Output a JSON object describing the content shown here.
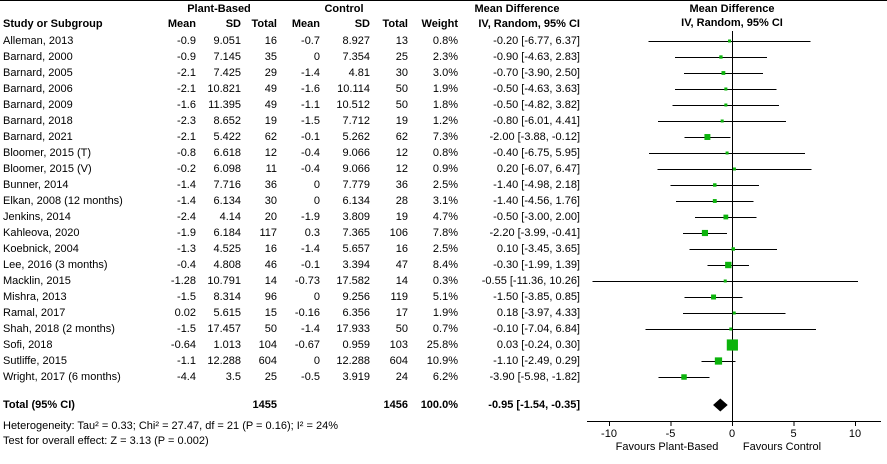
{
  "header": {
    "plant_group": "Plant-Based",
    "control_group": "Control",
    "md_table": "Mean Difference",
    "md_plot": "Mean Difference",
    "iv_plot": "IV, Random, 95% CI",
    "columns": {
      "study": "Study or Subgroup",
      "mean": "Mean",
      "sd": "SD",
      "total": "Total",
      "weight": "Weight",
      "ci": "IV, Random, 95% CI"
    }
  },
  "chart_data": {
    "type": "forest_plot",
    "effect_measure": "Mean Difference",
    "method": "IV, Random, 95% CI",
    "axis": {
      "ticks": [
        -10,
        -5,
        0,
        5,
        10
      ],
      "min": -11.8,
      "max": 12.1,
      "label_left": "Favours Plant-Based",
      "label_right": "Favours Control"
    },
    "studies": [
      {
        "name": "Alleman, 2013",
        "p_mean": "-0.9",
        "p_sd": "9.051",
        "p_total": "16",
        "c_mean": "-0.7",
        "c_sd": "8.927",
        "c_total": "13",
        "weight": "0.8%",
        "md": -0.2,
        "lo": -6.77,
        "hi": 6.37,
        "ci_text": "-0.20 [-6.77, 6.37]"
      },
      {
        "name": "Barnard, 2000",
        "p_mean": "-0.9",
        "p_sd": "7.145",
        "p_total": "35",
        "c_mean": "0",
        "c_sd": "7.354",
        "c_total": "25",
        "weight": "2.3%",
        "md": -0.9,
        "lo": -4.63,
        "hi": 2.83,
        "ci_text": "-0.90 [-4.63, 2.83]"
      },
      {
        "name": "Barnard, 2005",
        "p_mean": "-2.1",
        "p_sd": "7.425",
        "p_total": "29",
        "c_mean": "-1.4",
        "c_sd": "4.81",
        "c_total": "30",
        "weight": "3.0%",
        "md": -0.7,
        "lo": -3.9,
        "hi": 2.5,
        "ci_text": "-0.70 [-3.90, 2.50]"
      },
      {
        "name": "Barnard, 2006",
        "p_mean": "-2.1",
        "p_sd": "10.821",
        "p_total": "49",
        "c_mean": "-1.6",
        "c_sd": "10.114",
        "c_total": "50",
        "weight": "1.9%",
        "md": -0.5,
        "lo": -4.63,
        "hi": 3.63,
        "ci_text": "-0.50 [-4.63, 3.63]"
      },
      {
        "name": "Barnard, 2009",
        "p_mean": "-1.6",
        "p_sd": "11.395",
        "p_total": "49",
        "c_mean": "-1.1",
        "c_sd": "10.512",
        "c_total": "50",
        "weight": "1.8%",
        "md": -0.5,
        "lo": -4.82,
        "hi": 3.82,
        "ci_text": "-0.50 [-4.82, 3.82]"
      },
      {
        "name": "Barnard, 2018",
        "p_mean": "-2.3",
        "p_sd": "8.652",
        "p_total": "19",
        "c_mean": "-1.5",
        "c_sd": "7.712",
        "c_total": "19",
        "weight": "1.2%",
        "md": -0.8,
        "lo": -6.01,
        "hi": 4.41,
        "ci_text": "-0.80 [-6.01, 4.41]"
      },
      {
        "name": "Barnard, 2021",
        "p_mean": "-2.1",
        "p_sd": "5.422",
        "p_total": "62",
        "c_mean": "-0.1",
        "c_sd": "5.262",
        "c_total": "62",
        "weight": "7.3%",
        "md": -2.0,
        "lo": -3.88,
        "hi": -0.12,
        "ci_text": "-2.00 [-3.88, -0.12]"
      },
      {
        "name": "Bloomer, 2015 (T)",
        "p_mean": "-0.8",
        "p_sd": "6.618",
        "p_total": "12",
        "c_mean": "-0.4",
        "c_sd": "9.066",
        "c_total": "12",
        "weight": "0.8%",
        "md": -0.4,
        "lo": -6.75,
        "hi": 5.95,
        "ci_text": "-0.40 [-6.75, 5.95]"
      },
      {
        "name": "Bloomer, 2015 (V)",
        "p_mean": "-0.2",
        "p_sd": "6.098",
        "p_total": "11",
        "c_mean": "-0.4",
        "c_sd": "9.066",
        "c_total": "12",
        "weight": "0.9%",
        "md": 0.2,
        "lo": -6.07,
        "hi": 6.47,
        "ci_text": "0.20 [-6.07, 6.47]"
      },
      {
        "name": "Bunner, 2014",
        "p_mean": "-1.4",
        "p_sd": "7.716",
        "p_total": "36",
        "c_mean": "0",
        "c_sd": "7.779",
        "c_total": "36",
        "weight": "2.5%",
        "md": -1.4,
        "lo": -4.98,
        "hi": 2.18,
        "ci_text": "-1.40 [-4.98, 2.18]"
      },
      {
        "name": "Elkan, 2008 (12 months)",
        "p_mean": "-1.4",
        "p_sd": "6.134",
        "p_total": "30",
        "c_mean": "0",
        "c_sd": "6.134",
        "c_total": "28",
        "weight": "3.1%",
        "md": -1.4,
        "lo": -4.56,
        "hi": 1.76,
        "ci_text": "-1.40 [-4.56, 1.76]"
      },
      {
        "name": "Jenkins, 2014",
        "p_mean": "-2.4",
        "p_sd": "4.14",
        "p_total": "20",
        "c_mean": "-1.9",
        "c_sd": "3.809",
        "c_total": "19",
        "weight": "4.7%",
        "md": -0.5,
        "lo": -3.0,
        "hi": 2.0,
        "ci_text": "-0.50 [-3.00, 2.00]"
      },
      {
        "name": "Kahleova, 2020",
        "p_mean": "-1.9",
        "p_sd": "6.184",
        "p_total": "117",
        "c_mean": "0.3",
        "c_sd": "7.365",
        "c_total": "106",
        "weight": "7.8%",
        "md": -2.2,
        "lo": -3.99,
        "hi": -0.41,
        "ci_text": "-2.20 [-3.99, -0.41]"
      },
      {
        "name": "Koebnick, 2004",
        "p_mean": "-1.3",
        "p_sd": "4.525",
        "p_total": "16",
        "c_mean": "-1.4",
        "c_sd": "5.657",
        "c_total": "16",
        "weight": "2.5%",
        "md": 0.1,
        "lo": -3.45,
        "hi": 3.65,
        "ci_text": "0.10 [-3.45, 3.65]"
      },
      {
        "name": "Lee, 2016 (3 months)",
        "p_mean": "-0.4",
        "p_sd": "4.808",
        "p_total": "46",
        "c_mean": "-0.1",
        "c_sd": "3.394",
        "c_total": "47",
        "weight": "8.4%",
        "md": -0.3,
        "lo": -1.99,
        "hi": 1.39,
        "ci_text": "-0.30 [-1.99, 1.39]"
      },
      {
        "name": "Macklin, 2015",
        "p_mean": "-1.28",
        "p_sd": "10.791",
        "p_total": "14",
        "c_mean": "-0.73",
        "c_sd": "17.582",
        "c_total": "14",
        "weight": "0.3%",
        "md": -0.55,
        "lo": -11.36,
        "hi": 10.26,
        "ci_text": "-0.55 [-11.36, 10.26]"
      },
      {
        "name": "Mishra, 2013",
        "p_mean": "-1.5",
        "p_sd": "8.314",
        "p_total": "96",
        "c_mean": "0",
        "c_sd": "9.256",
        "c_total": "119",
        "weight": "5.1%",
        "md": -1.5,
        "lo": -3.85,
        "hi": 0.85,
        "ci_text": "-1.50 [-3.85, 0.85]"
      },
      {
        "name": "Ramal, 2017",
        "p_mean": "0.02",
        "p_sd": "5.615",
        "p_total": "15",
        "c_mean": "-0.16",
        "c_sd": "6.356",
        "c_total": "17",
        "weight": "1.9%",
        "md": 0.18,
        "lo": -3.97,
        "hi": 4.33,
        "ci_text": "0.18 [-3.97, 4.33]"
      },
      {
        "name": "Shah, 2018 (2 months)",
        "p_mean": "-1.5",
        "p_sd": "17.457",
        "p_total": "50",
        "c_mean": "-1.4",
        "c_sd": "17.933",
        "c_total": "50",
        "weight": "0.7%",
        "md": -0.1,
        "lo": -7.04,
        "hi": 6.84,
        "ci_text": "-0.10 [-7.04, 6.84]"
      },
      {
        "name": "Sofi, 2018",
        "p_mean": "-0.64",
        "p_sd": "1.013",
        "p_total": "104",
        "c_mean": "-0.67",
        "c_sd": "0.959",
        "c_total": "103",
        "weight": "25.8%",
        "md": 0.03,
        "lo": -0.24,
        "hi": 0.3,
        "ci_text": "0.03 [-0.24, 0.30]"
      },
      {
        "name": "Sutliffe, 2015",
        "p_mean": "-1.1",
        "p_sd": "12.288",
        "p_total": "604",
        "c_mean": "0",
        "c_sd": "12.288",
        "c_total": "604",
        "weight": "10.9%",
        "md": -1.1,
        "lo": -2.49,
        "hi": 0.29,
        "ci_text": "-1.10 [-2.49, 0.29]"
      },
      {
        "name": "Wright, 2017 (6 months)",
        "p_mean": "-4.4",
        "p_sd": "3.5",
        "p_total": "25",
        "c_mean": "-0.5",
        "c_sd": "3.919",
        "c_total": "24",
        "weight": "6.2%",
        "md": -3.9,
        "lo": -5.98,
        "hi": -1.82,
        "ci_text": "-3.90 [-5.98, -1.82]"
      }
    ],
    "total": {
      "label": "Total (95% CI)",
      "p_total": "1455",
      "c_total": "1456",
      "weight": "100.0%",
      "md": -0.95,
      "lo": -1.54,
      "hi": -0.35,
      "ci_text": "-0.95 [-1.54, -0.35]"
    },
    "footnotes": {
      "heterogeneity": "Heterogeneity: Tau² = 0.33; Chi² = 27.47, df = 21 (P = 0.16); I² = 24%",
      "overall_effect": "Test for overall effect: Z = 3.13 (P = 0.002)"
    }
  },
  "colors": {
    "marker": "#0cb30c",
    "diamond": "#000000",
    "line": "#000000"
  }
}
